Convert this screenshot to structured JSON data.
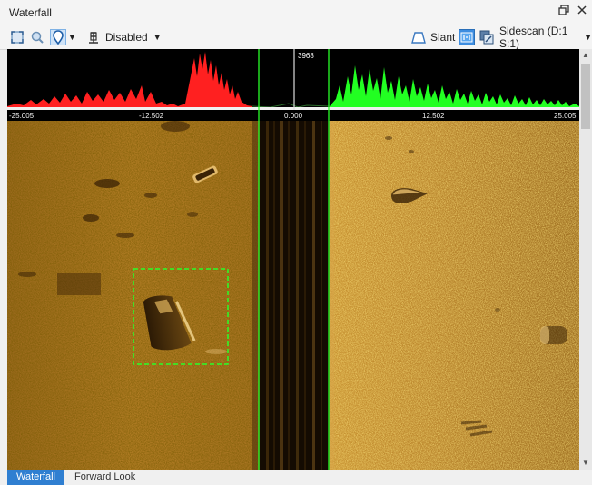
{
  "window": {
    "title": "Waterfall"
  },
  "toolbar": {
    "disabled_label": "Disabled",
    "slant_label": "Slant",
    "mode_label": "Sidescan (D:1 S:1)"
  },
  "range_axis": {
    "ticks": [
      "-25.005",
      "-12.502",
      "0.000",
      "12.502",
      "25.005"
    ],
    "depth_marker": "3968"
  },
  "tabs": [
    {
      "label": "Waterfall",
      "active": true
    },
    {
      "label": "Forward Look",
      "active": false
    }
  ],
  "colors": {
    "port_signal": "#ff2020",
    "starboard_signal": "#22ff22",
    "selection": "#22ff22",
    "sonar_base": "#c08a2c",
    "tab_active": "#2f7fd1"
  },
  "icons": [
    "fit-view-icon",
    "zoom-icon",
    "marker-icon",
    "ping-icon",
    "slant-icon",
    "sidescan-mode-icon",
    "palette-icon",
    "restore-window-icon",
    "close-icon"
  ]
}
